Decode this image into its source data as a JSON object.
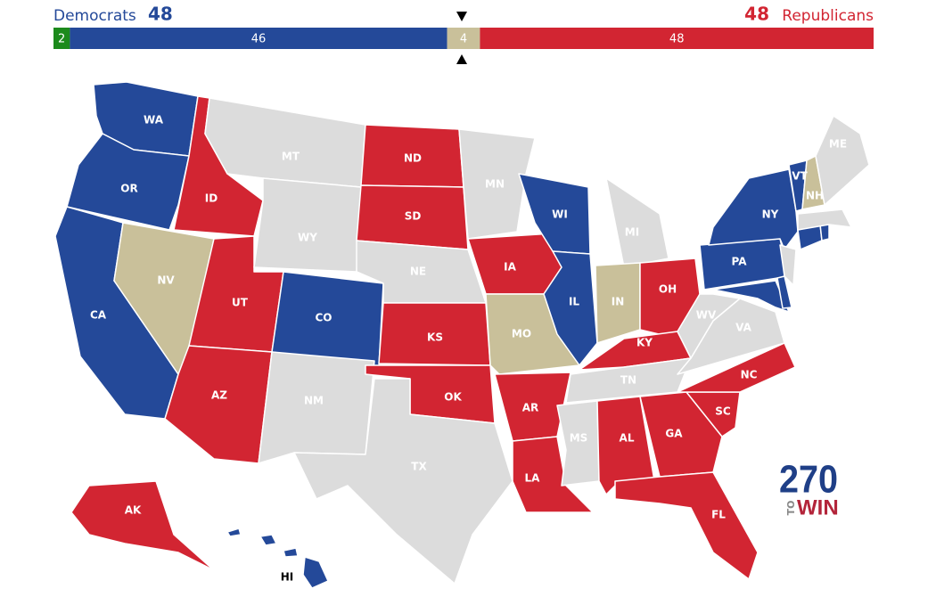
{
  "header": {
    "democrats": {
      "label": "Democrats",
      "value": 48,
      "color": "#244999"
    },
    "republicans": {
      "label": "Republicans",
      "value": 48,
      "color": "#d22532"
    }
  },
  "balance": {
    "segments": [
      {
        "value": 2,
        "color": "#1c8a1c"
      },
      {
        "value": 46,
        "color": "#244999"
      },
      {
        "value": 4,
        "color": "#c9c09a"
      },
      {
        "value": 48,
        "color": "#d22532"
      }
    ]
  },
  "states": [
    {
      "label": "WA",
      "color": "#244999"
    },
    {
      "label": "OR",
      "color": "#244999"
    },
    {
      "label": "CA",
      "color": "#244999"
    },
    {
      "label": "ID",
      "color": "#d22532"
    },
    {
      "label": "NV",
      "color": "#c9c09a"
    },
    {
      "label": "UT",
      "color": "#d22532"
    },
    {
      "label": "AZ",
      "color": "#d22532"
    },
    {
      "label": "MT",
      "color": "#dcdcdc"
    },
    {
      "label": "WY",
      "color": "#dcdcdc"
    },
    {
      "label": "CO",
      "color": "#244999"
    },
    {
      "label": "NM",
      "color": "#dcdcdc"
    },
    {
      "label": "ND",
      "color": "#d22532"
    },
    {
      "label": "SD",
      "color": "#d22532"
    },
    {
      "label": "NE",
      "color": "#dcdcdc"
    },
    {
      "label": "KS",
      "color": "#d22532"
    },
    {
      "label": "OK",
      "color": "#d22532"
    },
    {
      "label": "TX",
      "color": "#dcdcdc"
    },
    {
      "label": "MN",
      "color": "#dcdcdc"
    },
    {
      "label": "IA",
      "color": "#d22532"
    },
    {
      "label": "MO",
      "color": "#c9c09a"
    },
    {
      "label": "AR",
      "color": "#d22532"
    },
    {
      "label": "LA",
      "color": "#d22532"
    },
    {
      "label": "WI",
      "color": "#244999"
    },
    {
      "label": "IL",
      "color": "#244999"
    },
    {
      "label": "MI",
      "color": "#dcdcdc"
    },
    {
      "label": "IN",
      "color": "#c9c09a"
    },
    {
      "label": "OH",
      "color": "#d22532"
    },
    {
      "label": "KY",
      "color": "#d22532"
    },
    {
      "label": "TN",
      "color": "#dcdcdc"
    },
    {
      "label": "MS",
      "color": "#dcdcdc"
    },
    {
      "label": "AL",
      "color": "#d22532"
    },
    {
      "label": "GA",
      "color": "#d22532"
    },
    {
      "label": "FL",
      "color": "#d22532"
    },
    {
      "label": "SC",
      "color": "#d22532"
    },
    {
      "label": "NC",
      "color": "#d22532"
    },
    {
      "label": "VA",
      "color": "#dcdcdc"
    },
    {
      "label": "WV",
      "color": "#dcdcdc"
    },
    {
      "label": "PA",
      "color": "#244999"
    },
    {
      "label": "NY",
      "color": "#244999"
    },
    {
      "label": null,
      "color": "#244999"
    },
    {
      "label": null,
      "color": "#244999"
    },
    {
      "label": null,
      "color": "#dcdcdc"
    },
    {
      "label": null,
      "color": "#244999"
    },
    {
      "label": null,
      "color": "#244999"
    },
    {
      "label": null,
      "color": "#dcdcdc"
    },
    {
      "label": "VT",
      "color": "#244999"
    },
    {
      "label": "NH",
      "color": "#c9c09a"
    },
    {
      "label": "ME",
      "color": "#dcdcdc"
    },
    {
      "label": "AK",
      "color": "#d22532"
    },
    {
      "label": "HI",
      "color": "#244999"
    }
  ],
  "logo": {
    "number": "270",
    "small": "TO",
    "word": "WIN"
  }
}
